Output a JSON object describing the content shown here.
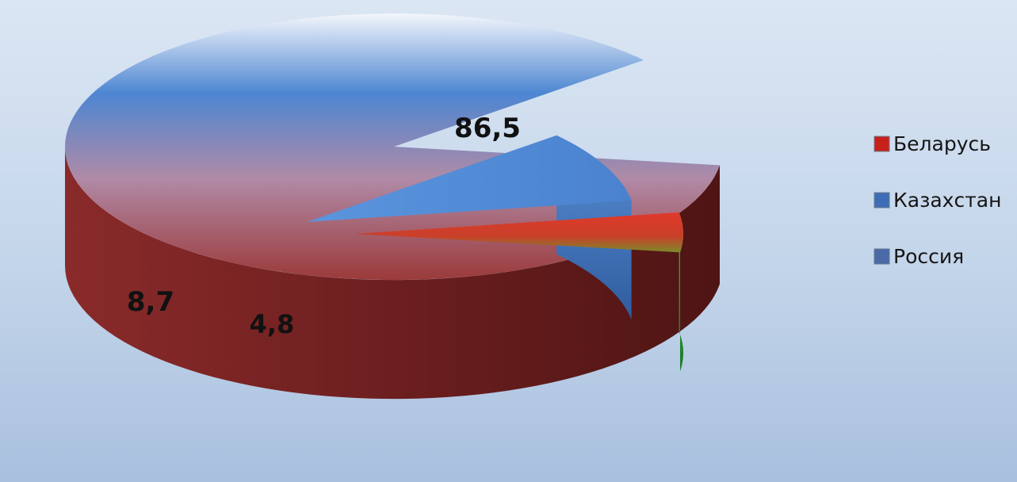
{
  "chart_data": {
    "type": "pie",
    "style": "3d-exploded",
    "categories": [
      "Беларусь",
      "Казахстан",
      "Россия"
    ],
    "values": [
      4.8,
      8.7,
      86.5
    ],
    "data_labels": [
      "4,8",
      "8,7",
      "86,5"
    ],
    "colors": {
      "Россия": "#4a7fc9",
      "Казахстан": "#5b95dd",
      "Беларусь": "#d93a2b",
      "side_main": "#6b1e1e",
      "side_kz": "#4a76b6",
      "side_by": "#2a9a38",
      "legend_marker_by": "#c8201a",
      "legend_marker_kz": "#3d6eb5",
      "legend_marker_ru": "#4a6aa8"
    },
    "legend": {
      "position": "right",
      "items": [
        "Беларусь",
        "Казахстан",
        "Россия"
      ]
    },
    "title": "",
    "xlabel": "",
    "ylabel": ""
  }
}
